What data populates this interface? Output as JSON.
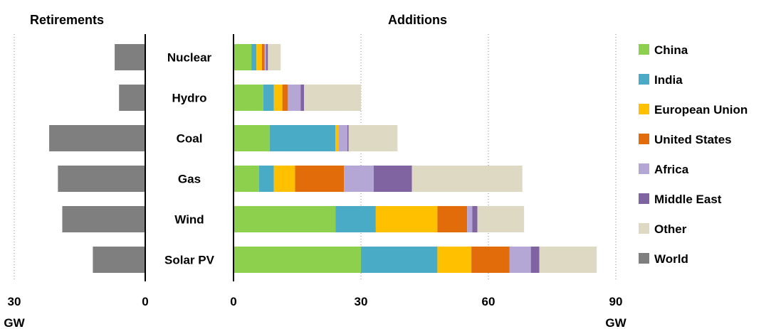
{
  "chart_data": {
    "type": "bar",
    "orientation": "horizontal",
    "stacked": true,
    "categories": [
      "Nuclear",
      "Hydro",
      "Coal",
      "Gas",
      "Wind",
      "Solar PV"
    ],
    "retirements": {
      "title": "Retirements",
      "xlim": [
        30,
        0
      ],
      "ticks": [
        "30",
        "0"
      ],
      "unit": "GW",
      "series": [
        {
          "name": "World",
          "color": "#7f7f7f",
          "values": [
            7,
            6,
            22,
            20,
            19,
            12
          ]
        }
      ]
    },
    "additions": {
      "title": "Additions",
      "xlim": [
        0,
        90
      ],
      "ticks": [
        "0",
        "30",
        "60",
        "90"
      ],
      "unit": "GW",
      "series": [
        {
          "name": "China",
          "color": "#8dd04e",
          "values": [
            4.2,
            7.0,
            8.5,
            6.0,
            24.0,
            30.0
          ]
        },
        {
          "name": "India",
          "color": "#4aabc6",
          "values": [
            1.2,
            2.5,
            15.5,
            3.5,
            9.5,
            18.0
          ]
        },
        {
          "name": "European Union",
          "color": "#ffc000",
          "values": [
            1.3,
            2.0,
            0.8,
            5.0,
            14.5,
            8.0
          ]
        },
        {
          "name": "United States",
          "color": "#e36c0a",
          "values": [
            0.6,
            1.3,
            0.0,
            11.5,
            7.0,
            9.0
          ]
        },
        {
          "name": "Africa",
          "color": "#b4a7d6",
          "values": [
            0.4,
            3.0,
            2.0,
            7.0,
            1.2,
            5.0
          ]
        },
        {
          "name": "Middle East",
          "color": "#8064a2",
          "values": [
            0.4,
            0.8,
            0.3,
            9.0,
            1.2,
            2.0
          ]
        },
        {
          "name": "Other",
          "color": "#ddd9c3",
          "values": [
            3.0,
            13.4,
            11.5,
            26.0,
            11.0,
            13.5
          ]
        }
      ]
    },
    "legend": {
      "position": "right",
      "items": [
        {
          "name": "China",
          "color": "#8dd04e"
        },
        {
          "name": "India",
          "color": "#4aabc6"
        },
        {
          "name": "European Union",
          "color": "#ffc000"
        },
        {
          "name": "United States",
          "color": "#e36c0a"
        },
        {
          "name": "Africa",
          "color": "#b4a7d6"
        },
        {
          "name": "Middle East",
          "color": "#8064a2"
        },
        {
          "name": "Other",
          "color": "#ddd9c3"
        },
        {
          "name": "World",
          "color": "#7f7f7f"
        }
      ]
    },
    "grid": "dotted vertical"
  }
}
